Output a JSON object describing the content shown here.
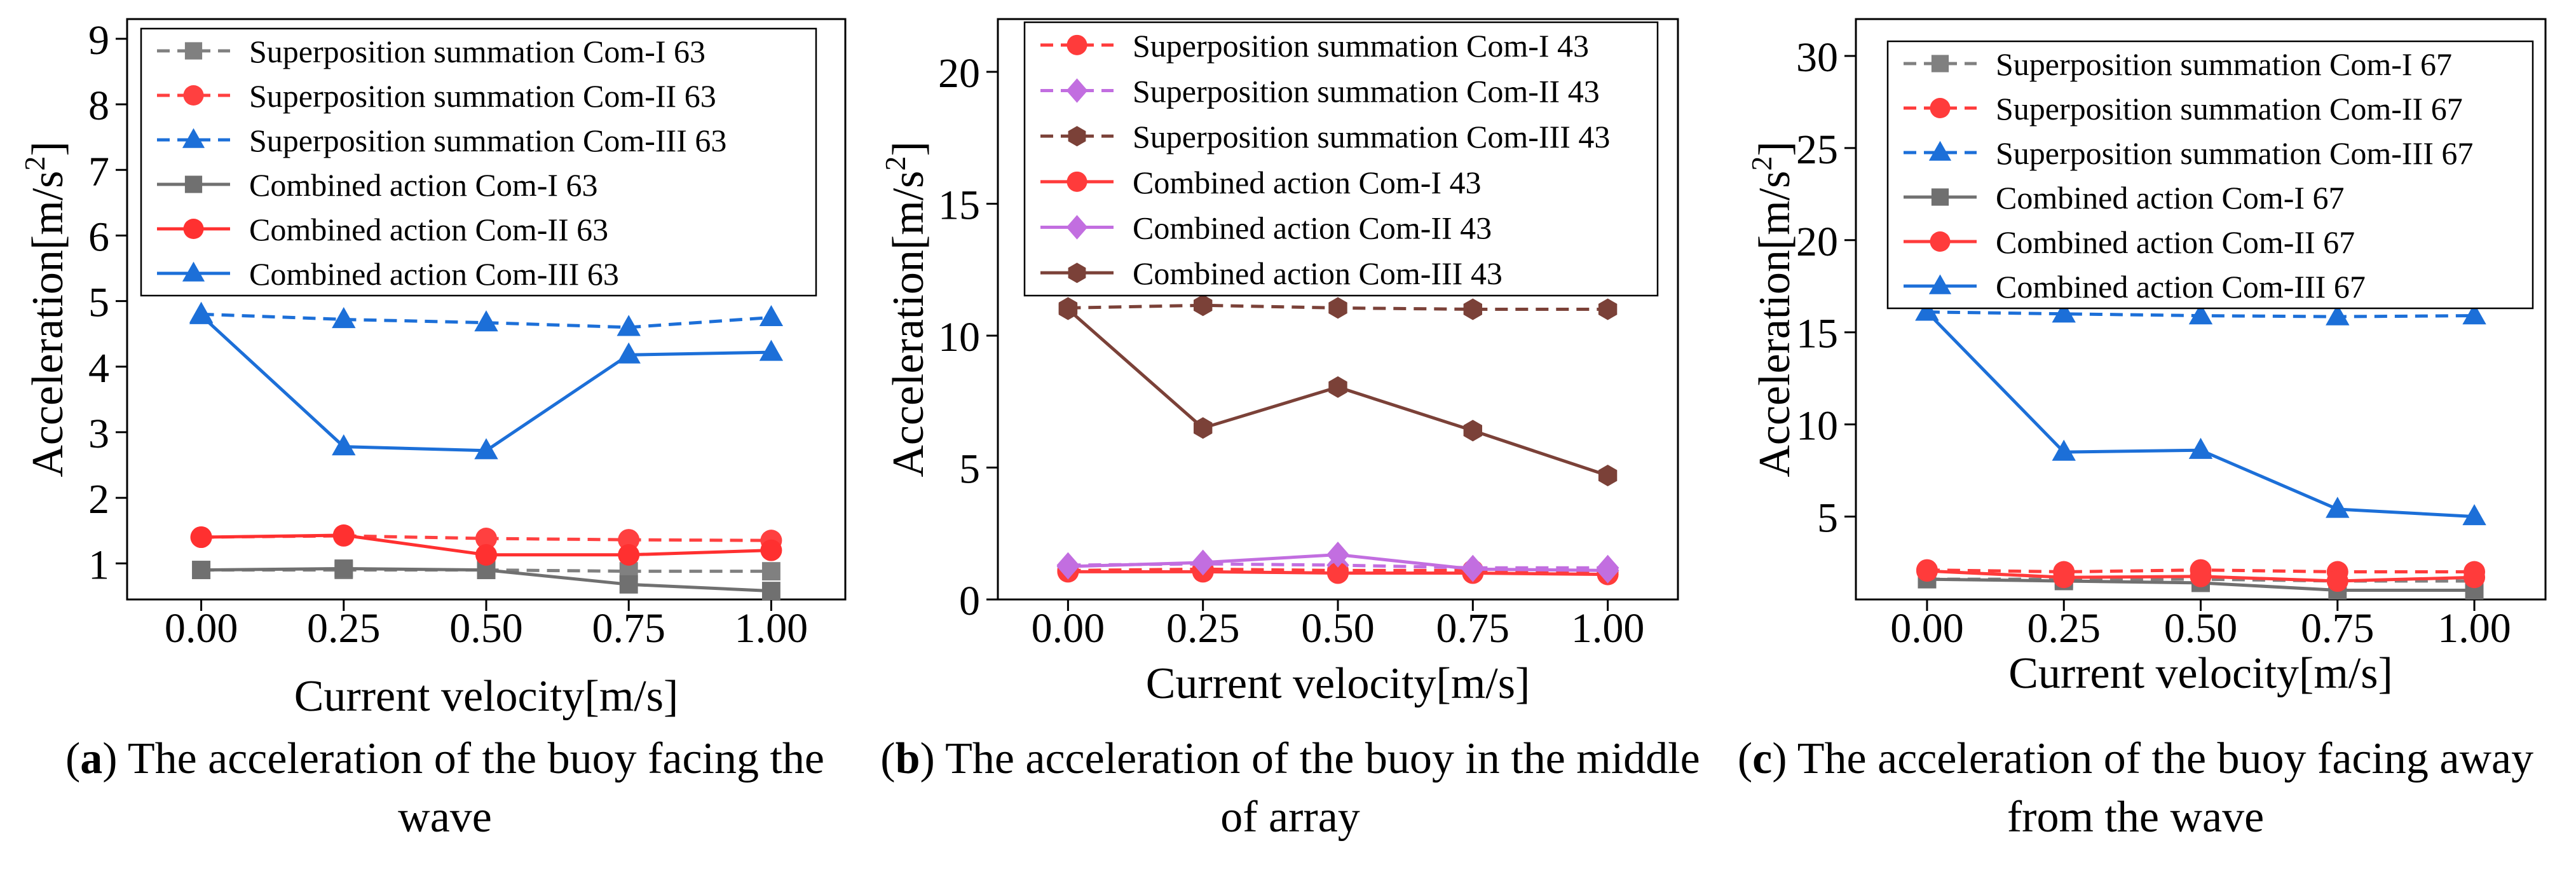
{
  "chart_data": [
    {
      "type": "line",
      "panel": "a",
      "caption": "The acceleration of the buoy facing the wave",
      "xlabel": "Current velocity[m/s]",
      "ylabel": "Acceleration[m/s",
      "ylabel_sup": "2",
      "ylabel_end": "]",
      "x": [
        0.0,
        0.25,
        0.5,
        0.75,
        1.0
      ],
      "x_tick_labels": [
        "0.00",
        "0.25",
        "0.50",
        "0.75",
        "1.00"
      ],
      "xlim": [
        -0.13,
        1.13
      ],
      "y_ticks": [
        1,
        2,
        3,
        4,
        5,
        6,
        7,
        8,
        9
      ],
      "y_tick_labels": [
        "1",
        "2",
        "3",
        "4",
        "5",
        "6",
        "7",
        "8",
        "9"
      ],
      "ylim": [
        0.45,
        9.3
      ],
      "legend_position": "top-left",
      "series": [
        {
          "name": "Superposition summation Com-I 63",
          "color": "#808080",
          "dash": true,
          "marker": "square",
          "values": [
            0.9,
            0.9,
            0.9,
            0.88,
            0.88
          ]
        },
        {
          "name": "Superposition summation Com-II 63",
          "color": "#ff4040",
          "dash": true,
          "marker": "circle",
          "values": [
            1.4,
            1.42,
            1.38,
            1.36,
            1.35
          ]
        },
        {
          "name": "Superposition summation Com-III 63",
          "color": "#1c6fd8",
          "dash": true,
          "marker": "triangle",
          "values": [
            4.8,
            4.72,
            4.67,
            4.6,
            4.75
          ]
        },
        {
          "name": "Combined action Com-I 63",
          "color": "#707070",
          "dash": false,
          "marker": "square",
          "values": [
            0.9,
            0.92,
            0.9,
            0.68,
            0.58
          ]
        },
        {
          "name": "Combined action Com-II 63",
          "color": "#ff3030",
          "dash": false,
          "marker": "circle",
          "values": [
            1.4,
            1.43,
            1.13,
            1.13,
            1.2
          ]
        },
        {
          "name": "Combined action Com-III 63",
          "color": "#1c6fd8",
          "dash": false,
          "marker": "triangle",
          "values": [
            4.78,
            2.78,
            2.72,
            4.18,
            4.22
          ]
        }
      ]
    },
    {
      "type": "line",
      "panel": "b",
      "caption": "The acceleration of the buoy in the middle of array",
      "xlabel": "Current velocity[m/s]",
      "ylabel": "Acceleration[m/s",
      "ylabel_sup": "2",
      "ylabel_end": "]",
      "x": [
        0.0,
        0.25,
        0.5,
        0.75,
        1.0
      ],
      "x_tick_labels": [
        "0.00",
        "0.25",
        "0.50",
        "0.75",
        "1.00"
      ],
      "xlim": [
        -0.13,
        1.13
      ],
      "y_ticks": [
        0,
        5,
        10,
        15,
        20
      ],
      "y_tick_labels": [
        "0",
        "5",
        "10",
        "15",
        "20"
      ],
      "ylim": [
        0,
        22
      ],
      "legend_position": "top-left",
      "series": [
        {
          "name": "Superposition summation Com-I 43",
          "color": "#ff3b3b",
          "dash": true,
          "marker": "circle",
          "values": [
            1.1,
            1.15,
            1.1,
            1.1,
            1.05
          ]
        },
        {
          "name": "Superposition summation Com-II 43",
          "color": "#c26ee0",
          "dash": true,
          "marker": "diamond",
          "values": [
            1.3,
            1.35,
            1.3,
            1.2,
            1.2
          ]
        },
        {
          "name": "Superposition summation Com-III 43",
          "color": "#7b4138",
          "dash": true,
          "marker": "hexagon",
          "values": [
            11.05,
            11.15,
            11.05,
            11.0,
            11.0
          ]
        },
        {
          "name": "Combined action Com-I 43",
          "color": "#ff3b3b",
          "dash": false,
          "marker": "circle",
          "values": [
            1.05,
            1.05,
            1.0,
            1.0,
            0.95
          ]
        },
        {
          "name": "Combined action Com-II 43",
          "color": "#c26ee0",
          "dash": false,
          "marker": "diamond",
          "values": [
            1.25,
            1.4,
            1.7,
            1.15,
            1.1
          ]
        },
        {
          "name": "Combined action Com-III 43",
          "color": "#7b4138",
          "dash": false,
          "marker": "hexagon",
          "values": [
            11.0,
            6.5,
            8.05,
            6.4,
            4.7
          ]
        }
      ]
    },
    {
      "type": "line",
      "panel": "c",
      "caption": "The acceleration of the buoy facing away from the wave",
      "xlabel": "Current velocity[m/s]",
      "ylabel": "Acceleration[m/s",
      "ylabel_sup": "2",
      "ylabel_end": "]",
      "x": [
        0.0,
        0.25,
        0.5,
        0.75,
        1.0
      ],
      "x_tick_labels": [
        "0.00",
        "0.25",
        "0.50",
        "0.75",
        "1.00"
      ],
      "xlim": [
        -0.13,
        1.13
      ],
      "y_ticks": [
        5,
        10,
        15,
        20,
        25,
        30
      ],
      "y_tick_labels": [
        "5",
        "10",
        "15",
        "20",
        "25",
        "30"
      ],
      "ylim": [
        0.5,
        32
      ],
      "legend_position": "top-left",
      "series": [
        {
          "name": "Superposition summation Com-I 67",
          "color": "#808080",
          "dash": true,
          "marker": "square",
          "values": [
            1.6,
            1.6,
            1.6,
            1.5,
            1.5
          ]
        },
        {
          "name": "Superposition summation Com-II 67",
          "color": "#ff3b3b",
          "dash": true,
          "marker": "circle",
          "values": [
            2.1,
            2.0,
            2.1,
            2.0,
            2.0
          ]
        },
        {
          "name": "Superposition summation Com-III 67",
          "color": "#1c6fd8",
          "dash": true,
          "marker": "triangle",
          "values": [
            16.1,
            16.0,
            15.9,
            15.85,
            15.9
          ]
        },
        {
          "name": "Combined action Com-I 67",
          "color": "#707070",
          "dash": false,
          "marker": "square",
          "values": [
            1.6,
            1.5,
            1.4,
            1.0,
            1.0
          ]
        },
        {
          "name": "Combined action Com-II 67",
          "color": "#ff3b3b",
          "dash": false,
          "marker": "circle",
          "values": [
            2.05,
            1.7,
            1.75,
            1.5,
            1.7
          ]
        },
        {
          "name": "Combined action Com-III 67",
          "color": "#1c6fd8",
          "dash": false,
          "marker": "triangle",
          "values": [
            16.1,
            8.5,
            8.6,
            5.4,
            5.0
          ]
        }
      ]
    }
  ]
}
